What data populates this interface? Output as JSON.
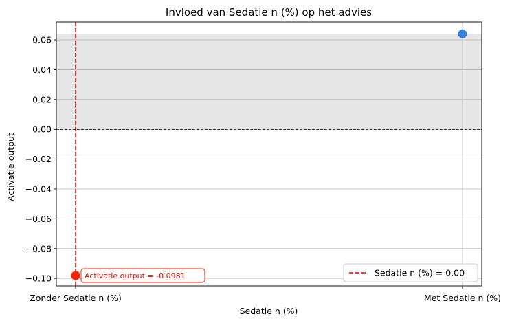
{
  "chart_data": {
    "type": "scatter",
    "title": "Invloed van Sedatie n (%) op het advies",
    "xlabel": "Sedatie n (%)",
    "ylabel": "Activatie output",
    "categories": [
      "Zonder Sedatie n (%)",
      "Met Sedatie n (%)"
    ],
    "ylim": [
      -0.105,
      0.072
    ],
    "yticks": [
      -0.1,
      -0.08,
      -0.06,
      -0.04,
      -0.02,
      0.0,
      0.02,
      0.04,
      0.06
    ],
    "ytick_labels": [
      "−0.10",
      "−0.08",
      "−0.06",
      "−0.04",
      "−0.02",
      "0.00",
      "0.02",
      "0.04",
      "0.06"
    ],
    "grid": true,
    "shaded_region": {
      "y_from": 0.0,
      "y_to": 0.064,
      "color": "#e6e6e6"
    },
    "reference_hline": {
      "y": 0.0,
      "color": "#000000",
      "style": "dashed"
    },
    "reference_vline": {
      "category_index": 0,
      "color": "#dd0000",
      "style": "dashed"
    },
    "points": [
      {
        "category_index": 0,
        "y": -0.0981,
        "color": "#ff2200",
        "annotation": "Activatie output = -0.0981"
      },
      {
        "category_index": 1,
        "y": 0.064,
        "color": "#3b82e0"
      }
    ],
    "legend": {
      "position": "bottom-right",
      "entries": [
        {
          "label": "Sedatie n (%) = 0.00",
          "color": "#dd0000",
          "style": "dashed"
        }
      ]
    }
  }
}
